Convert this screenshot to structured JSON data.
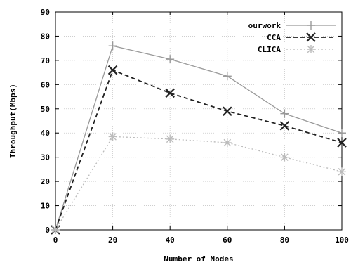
{
  "chart_data": {
    "type": "line",
    "title": "",
    "xlabel": "Number of Nodes",
    "ylabel": "Throughput(Mbps)",
    "xlim": [
      0,
      100
    ],
    "ylim": [
      0,
      90
    ],
    "x_ticks": [
      0,
      20,
      40,
      60,
      80,
      100
    ],
    "y_ticks": [
      0,
      10,
      20,
      30,
      40,
      50,
      60,
      70,
      80,
      90
    ],
    "grid": true,
    "legend_position": "top-right",
    "x": [
      0,
      20,
      40,
      60,
      80,
      100
    ],
    "series": [
      {
        "name": "ourwork",
        "values": [
          0,
          76,
          70.5,
          63.5,
          48,
          40
        ],
        "color": "#999999",
        "marker": "plus",
        "dash": "solid"
      },
      {
        "name": "CCA",
        "values": [
          0,
          66,
          56.5,
          49,
          43,
          36
        ],
        "color": "#222222",
        "marker": "x",
        "dash": "dashed"
      },
      {
        "name": "CLICA",
        "values": [
          0,
          38.5,
          37.5,
          36,
          30,
          24
        ],
        "color": "#bbbbbb",
        "marker": "asterisk",
        "dash": "dotted"
      }
    ]
  }
}
